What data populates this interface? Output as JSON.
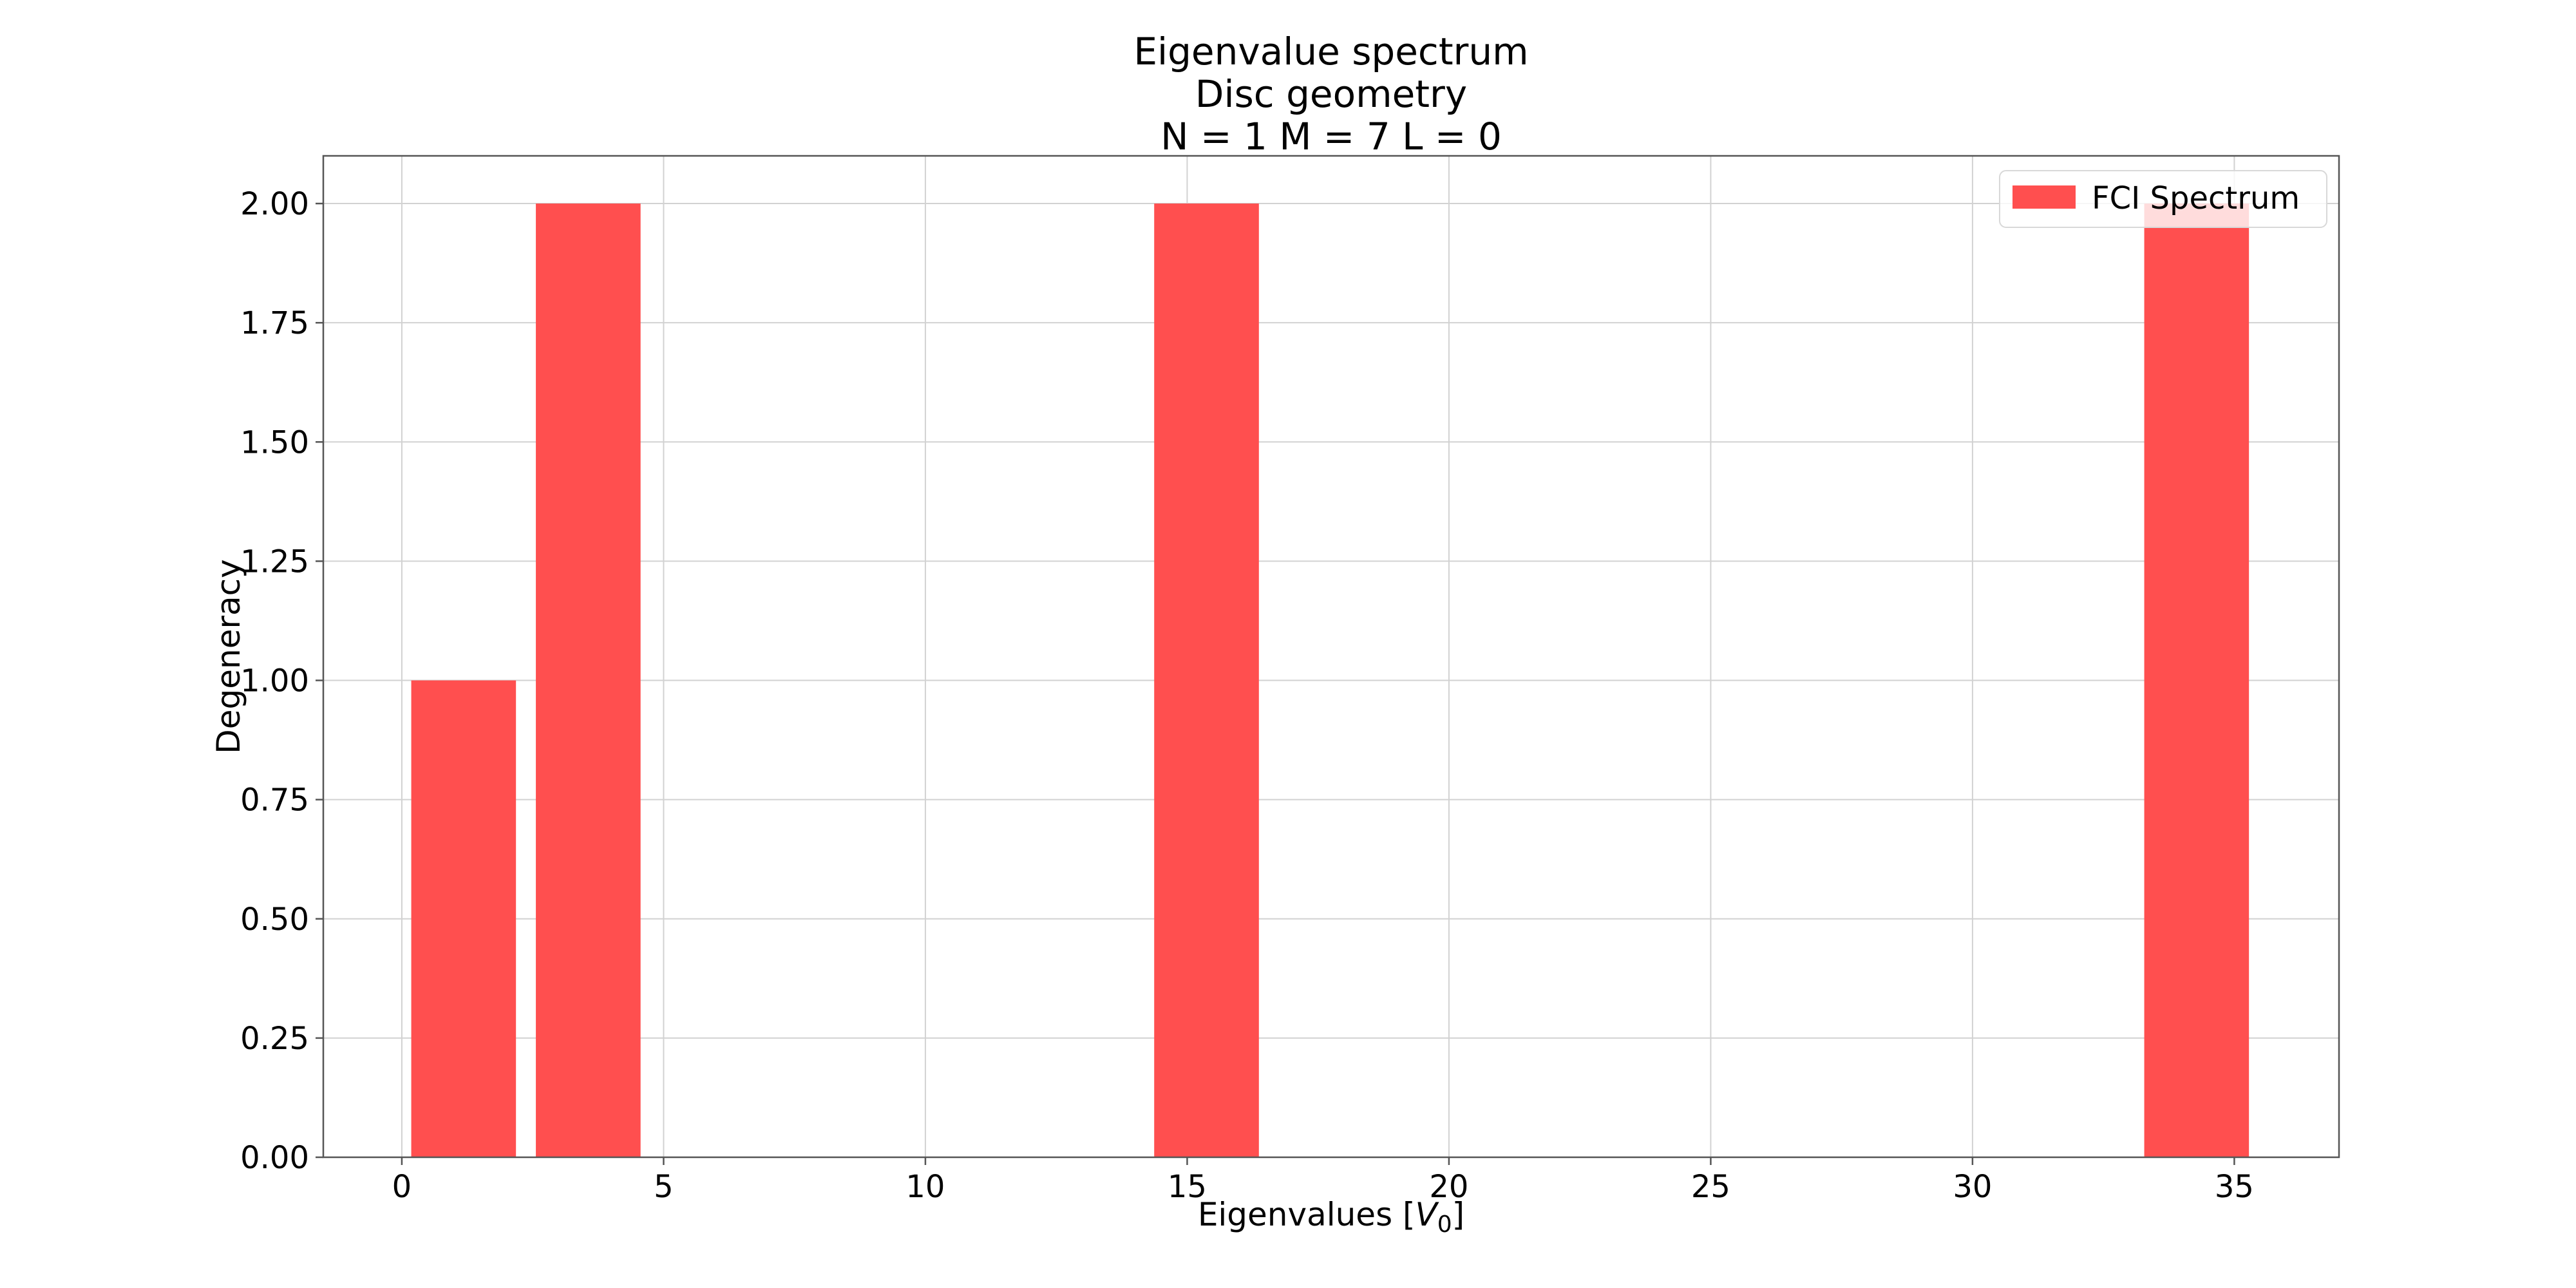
{
  "chart_data": {
    "type": "bar",
    "title_lines": [
      "Eigenvalue spectrum",
      "Disc geometry",
      "N = 1   M = 7   L = 0"
    ],
    "xlabel": "Eigenvalues [",
    "xlabel_symbol": "V",
    "xlabel_subscript": "0",
    "xlabel_suffix": "]",
    "ylabel": "Degeneracy",
    "xlim": [
      -1.5,
      37.0
    ],
    "ylim": [
      0.0,
      2.1
    ],
    "x_ticks": [
      0,
      5,
      10,
      15,
      20,
      25,
      30,
      35
    ],
    "y_ticks": [
      0.0,
      0.25,
      0.5,
      0.75,
      1.0,
      1.25,
      1.5,
      1.75,
      2.0
    ],
    "y_tick_labels": [
      "0.00",
      "0.25",
      "0.50",
      "0.75",
      "1.00",
      "1.25",
      "1.50",
      "1.75",
      "2.00"
    ],
    "grid": true,
    "bar_width": 2.0,
    "series": [
      {
        "name": "FCI Spectrum",
        "color": "#ff4f4f",
        "x": [
          1.18,
          3.56,
          15.37,
          34.28
        ],
        "values": [
          1,
          2,
          2,
          2
        ]
      }
    ],
    "legend": {
      "position": "top-right",
      "entries": [
        "FCI Spectrum"
      ]
    }
  }
}
